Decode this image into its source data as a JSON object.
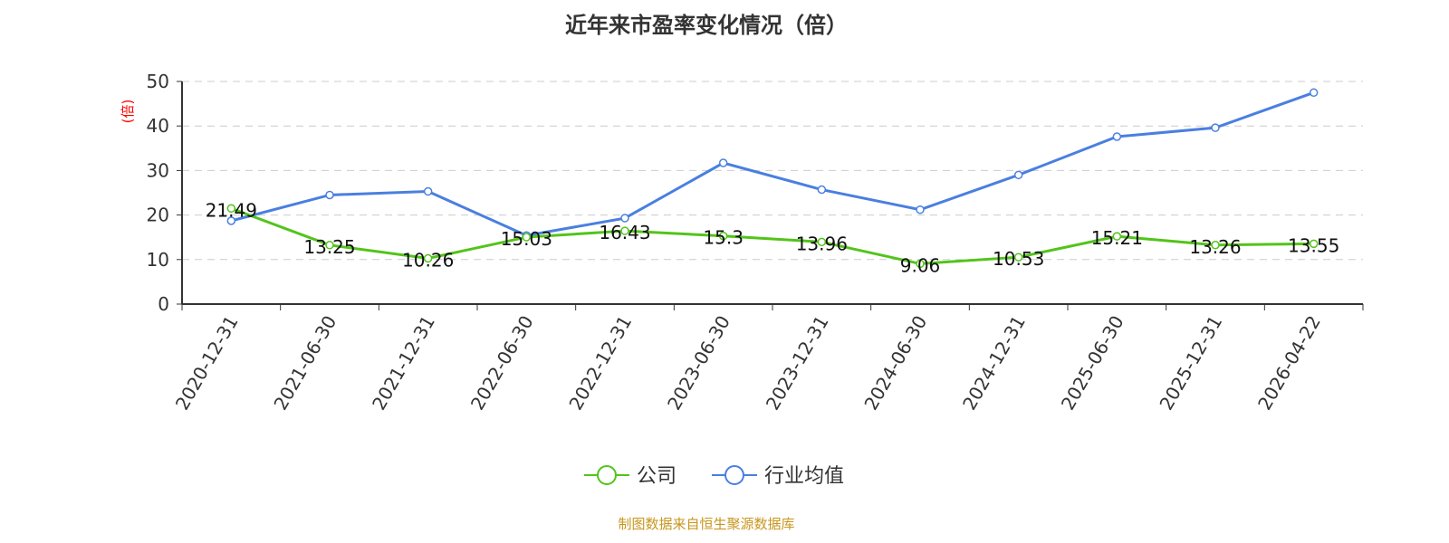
{
  "chart_data": {
    "type": "line",
    "title": "近年来市盈率变化情况（倍）",
    "ylabel": "(倍)",
    "ylim": [
      0,
      50
    ],
    "yticks": [
      0,
      10,
      20,
      30,
      40,
      50
    ],
    "grid": true,
    "legend_position": "bottom",
    "categories": [
      "2020-12-31",
      "2021-06-30",
      "2021-12-31",
      "2022-06-30",
      "2022-12-31",
      "2023-06-30",
      "2023-12-31",
      "2024-06-30",
      "2024-12-31",
      "2025-06-30",
      "2025-12-31",
      "2026-04-22"
    ],
    "series": [
      {
        "name": "公司",
        "color": "#52c41a",
        "labels": true,
        "values": [
          21.49,
          13.25,
          10.26,
          15.03,
          16.43,
          15.3,
          13.96,
          9.06,
          10.53,
          15.21,
          13.26,
          13.55
        ]
      },
      {
        "name": "行业均值",
        "color": "#4a7fe0",
        "labels": false,
        "values": [
          18.7,
          24.5,
          25.3,
          15.4,
          19.3,
          31.7,
          25.7,
          21.2,
          29.0,
          37.6,
          39.6,
          47.5
        ]
      }
    ]
  },
  "footer": "制图数据来自恒生聚源数据库"
}
